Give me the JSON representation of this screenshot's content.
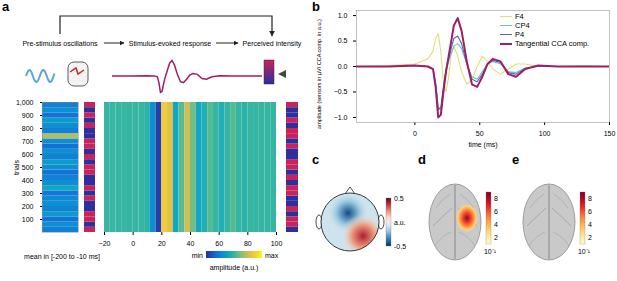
{
  "panel_labels": [
    "a",
    "b",
    "c",
    "d",
    "e"
  ],
  "schematic": {
    "steps": [
      "Pre-stimulus oscillations",
      "Stimulus-evoked response",
      "Perceived intensity"
    ]
  },
  "chart_data": [
    {
      "type": "heatmap",
      "ylabel": "trials",
      "ylim": [
        0,
        1000
      ],
      "yticks": [
        100,
        200,
        300,
        400,
        500,
        600,
        700,
        800,
        900,
        1000
      ],
      "xlim": [
        -20,
        100
      ],
      "xticks": [
        -20,
        0,
        20,
        40,
        60,
        80,
        100
      ],
      "bins": [
        -20,
        -16,
        -12,
        -8,
        -4,
        0,
        4,
        8,
        12,
        16,
        20,
        24,
        28,
        32,
        36,
        40,
        44,
        48,
        52,
        56,
        60,
        64,
        68,
        72,
        76,
        80,
        84,
        88,
        92,
        96,
        100
      ],
      "values": [
        0.5,
        0.5,
        0.5,
        0.5,
        0.5,
        0.5,
        0.5,
        0.48,
        0.3,
        0.05,
        0.85,
        0.8,
        0.4,
        0.55,
        0.75,
        0.6,
        0.4,
        0.45,
        0.55,
        0.5,
        0.45,
        0.5,
        0.55,
        0.5,
        0.48,
        0.5,
        0.5,
        0.5,
        0.5,
        0.5
      ],
      "colorbar": {
        "label": "amplitude (a.u.)",
        "range": [
          0,
          1
        ],
        "ticks": [
          {
            "value": 0,
            "label": "min"
          },
          {
            "value": 1,
            "label": "max"
          }
        ]
      },
      "trial_bins": [
        0,
        40,
        80,
        120,
        160,
        200,
        240,
        280,
        320,
        360,
        400,
        440,
        480,
        520,
        560,
        600,
        640,
        680,
        720,
        760,
        800,
        840,
        880,
        920,
        960,
        1000
      ],
      "prestimulus": {
        "label": "mean in [-200 to -10 ms]",
        "values": [
          0.25,
          0.3,
          0.2,
          0.35,
          0.25,
          0.3,
          0.28,
          0.22,
          0.4,
          0.3,
          0.25,
          0.2,
          0.3,
          0.35,
          0.25,
          0.3,
          0.2,
          0.3,
          0.7,
          0.25,
          0.3,
          0.35,
          0.2,
          0.3,
          0.25
        ]
      },
      "stimulus_strip": [
        1,
        0,
        1,
        1,
        0,
        0,
        1,
        0,
        1,
        0,
        0,
        1,
        1,
        0,
        1,
        0,
        1,
        1,
        0,
        0,
        1,
        0,
        1,
        0,
        1
      ],
      "rating_strip": [
        0,
        1,
        1,
        0,
        1,
        0,
        0,
        1,
        1,
        0,
        1,
        0,
        1,
        1,
        0,
        0,
        1,
        0,
        1,
        1,
        0,
        1,
        0,
        0,
        1
      ]
    },
    {
      "type": "line",
      "xlabel": "time (ms)",
      "ylabel": "amplitude (sensors in µV/ CCA comp. in a.u.)",
      "x": [
        -45,
        -20,
        0,
        10,
        14,
        16,
        18,
        20,
        22,
        24,
        26,
        28,
        30,
        33,
        36,
        40,
        44,
        48,
        52,
        56,
        60,
        66,
        72,
        78,
        85,
        95,
        110,
        130,
        150
      ],
      "xlim": [
        -45,
        150
      ],
      "xticks": [
        0,
        50,
        100,
        150
      ],
      "ylim": [
        -1.1,
        1.1
      ],
      "yticks": [
        -1,
        -0.5,
        0,
        0.5,
        1
      ],
      "series": [
        {
          "name": "F4",
          "color": "#e3dc7a",
          "values": [
            0,
            0.02,
            0.05,
            0.15,
            0.3,
            0.55,
            0.65,
            0.3,
            -0.3,
            -0.5,
            -0.2,
            0.25,
            0.4,
            0.2,
            -0.1,
            -0.35,
            -0.25,
            0,
            0.2,
            0.1,
            -0.05,
            -0.15,
            -0.05,
            0.05,
            0.05,
            0,
            0,
            0.02,
            0
          ]
        },
        {
          "name": "CP4",
          "color": "#6cc3c8",
          "values": [
            0,
            0,
            0.02,
            0,
            -0.05,
            -0.3,
            -0.8,
            -0.85,
            -0.45,
            -0.1,
            0.1,
            0.25,
            0.4,
            0.45,
            0.35,
            0.05,
            -0.2,
            -0.25,
            -0.1,
            0.05,
            0.1,
            0.05,
            -0.1,
            -0.12,
            -0.03,
            0,
            0,
            0,
            0
          ]
        },
        {
          "name": "P4",
          "color": "#5b5fc7",
          "values": [
            0,
            0,
            0.02,
            0,
            -0.05,
            -0.35,
            -0.85,
            -0.8,
            -0.4,
            -0.05,
            0.15,
            0.35,
            0.55,
            0.6,
            0.45,
            0.05,
            -0.25,
            -0.3,
            -0.15,
            0.05,
            0.12,
            0.08,
            -0.12,
            -0.15,
            -0.04,
            0.01,
            0,
            0,
            0
          ]
        },
        {
          "name": "Tangential CCA comp.",
          "color": "#9e1f63",
          "values": [
            0,
            0,
            0.02,
            0,
            -0.05,
            -0.4,
            -1.0,
            -0.95,
            -0.5,
            -0.1,
            0.2,
            0.5,
            0.8,
            0.95,
            0.7,
            0.1,
            -0.35,
            -0.4,
            -0.2,
            0.05,
            0.15,
            0.1,
            -0.15,
            -0.2,
            -0.05,
            0.02,
            0,
            0,
            0
          ]
        }
      ]
    }
  ],
  "topomap": {
    "colorbar": {
      "label": "a.u.",
      "range": [
        -0.5,
        0.5
      ],
      "ticks": [
        0.5,
        -0.5
      ]
    }
  },
  "source_maps": [
    {
      "colorbar": {
        "label": "10⁻¹",
        "range": [
          1,
          9
        ],
        "ticks": [
          2,
          4,
          6,
          8
        ]
      },
      "activation": true
    },
    {
      "colorbar": {
        "label": "10⁻¹",
        "range": [
          1,
          9
        ],
        "ticks": [
          2,
          4,
          6,
          8
        ]
      },
      "activation": false
    }
  ]
}
